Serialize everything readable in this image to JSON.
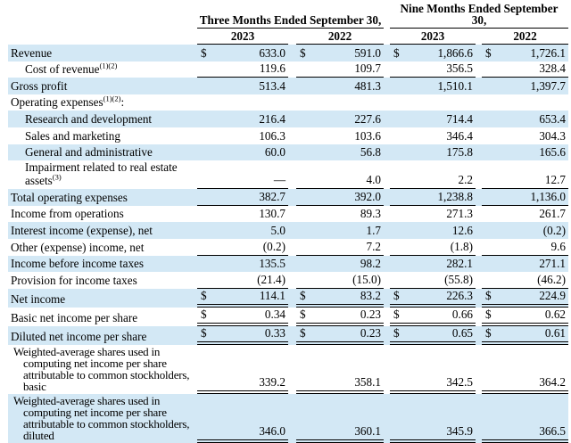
{
  "style": {
    "highlight_color": "#D3E8F5",
    "rule_color": "#000000"
  },
  "header": {
    "groups": [
      {
        "label": "Three Months Ended September 30,"
      },
      {
        "label": "Nine Months Ended September 30,"
      }
    ],
    "years": [
      "2023",
      "2022",
      "2023",
      "2022"
    ]
  },
  "rows": [
    {
      "label": "Revenue",
      "sup": "",
      "suffix": "",
      "indent": 0,
      "dollar": true,
      "values": [
        "633.0",
        "591.0",
        "1,866.6",
        "1,726.1"
      ],
      "highlight": true,
      "bottom": "none",
      "lines": 1
    },
    {
      "label": "Cost of revenue",
      "sup": "(1)(2)",
      "suffix": "",
      "indent": 1,
      "dollar": false,
      "values": [
        "119.6",
        "109.7",
        "356.5",
        "328.4"
      ],
      "highlight": false,
      "bottom": "single",
      "lines": 1
    },
    {
      "label": "Gross profit",
      "sup": "",
      "suffix": "",
      "indent": 0,
      "dollar": false,
      "values": [
        "513.4",
        "481.3",
        "1,510.1",
        "1,397.7"
      ],
      "highlight": true,
      "bottom": "none",
      "lines": 1
    },
    {
      "label": "Operating expenses",
      "sup": "(1)(2)",
      "suffix": ":",
      "indent": 0,
      "dollar": false,
      "values": null,
      "highlight": false,
      "bottom": "none",
      "lines": 1
    },
    {
      "label": "Research and development",
      "sup": "",
      "suffix": "",
      "indent": 1,
      "dollar": false,
      "values": [
        "216.4",
        "227.6",
        "714.4",
        "653.4"
      ],
      "highlight": true,
      "bottom": "none",
      "lines": 1
    },
    {
      "label": "Sales and marketing",
      "sup": "",
      "suffix": "",
      "indent": 1,
      "dollar": false,
      "values": [
        "106.3",
        "103.6",
        "346.4",
        "304.3"
      ],
      "highlight": false,
      "bottom": "none",
      "lines": 1
    },
    {
      "label": "General and administrative",
      "sup": "",
      "suffix": "",
      "indent": 1,
      "dollar": false,
      "values": [
        "60.0",
        "56.8",
        "175.8",
        "165.6"
      ],
      "highlight": true,
      "bottom": "none",
      "lines": 1
    },
    {
      "label": "Impairment related to real estate assets",
      "sup": "(3)",
      "suffix": "",
      "indent": 1,
      "dollar": false,
      "values": [
        "—",
        "4.0",
        "2.2",
        "12.7"
      ],
      "highlight": false,
      "bottom": "single",
      "lines": 2
    },
    {
      "label": "Total operating expenses",
      "sup": "",
      "suffix": "",
      "indent": 0,
      "dollar": false,
      "values": [
        "382.7",
        "392.0",
        "1,238.8",
        "1,136.0"
      ],
      "highlight": true,
      "bottom": "single",
      "lines": 1
    },
    {
      "label": "Income from operations",
      "sup": "",
      "suffix": "",
      "indent": 0,
      "dollar": false,
      "values": [
        "130.7",
        "89.3",
        "271.3",
        "261.7"
      ],
      "highlight": false,
      "bottom": "none",
      "lines": 1
    },
    {
      "label": "Interest income (expense), net",
      "sup": "",
      "suffix": "",
      "indent": 0,
      "dollar": false,
      "values": [
        "5.0",
        "1.7",
        "12.6",
        "(0.2)"
      ],
      "highlight": true,
      "bottom": "none",
      "lines": 1
    },
    {
      "label": "Other (expense) income, net",
      "sup": "",
      "suffix": "",
      "indent": 0,
      "dollar": false,
      "values": [
        "(0.2)",
        "7.2",
        "(1.8)",
        "9.6"
      ],
      "highlight": false,
      "bottom": "single",
      "lines": 1
    },
    {
      "label": "Income before income taxes",
      "sup": "",
      "suffix": "",
      "indent": 0,
      "dollar": false,
      "values": [
        "135.5",
        "98.2",
        "282.1",
        "271.1"
      ],
      "highlight": true,
      "bottom": "none",
      "lines": 1
    },
    {
      "label": "Provision for income taxes",
      "sup": "",
      "suffix": "",
      "indent": 0,
      "dollar": false,
      "values": [
        "(21.4)",
        "(15.0)",
        "(55.8)",
        "(46.2)"
      ],
      "highlight": false,
      "bottom": "single",
      "lines": 1
    },
    {
      "label": "Net income",
      "sup": "",
      "suffix": "",
      "indent": 0,
      "dollar": true,
      "values": [
        "114.1",
        "83.2",
        "226.3",
        "224.9"
      ],
      "highlight": true,
      "bottom": "double",
      "lines": 1
    },
    {
      "label": "Basic net income per share",
      "sup": "",
      "suffix": "",
      "indent": 0,
      "dollar": true,
      "values": [
        "0.34",
        "0.23",
        "0.66",
        "0.62"
      ],
      "highlight": false,
      "bottom": "double",
      "lines": 1
    },
    {
      "label": "Diluted net income per share",
      "sup": "",
      "suffix": "",
      "indent": 0,
      "dollar": true,
      "values": [
        "0.33",
        "0.23",
        "0.65",
        "0.61"
      ],
      "highlight": true,
      "bottom": "double",
      "lines": 1
    },
    {
      "label": "Weighted-average shares used in computing net income per share attributable to common stockholders, basic",
      "sup": "",
      "suffix": "",
      "indent": 0,
      "dollar": false,
      "values": [
        "339.2",
        "358.1",
        "342.5",
        "364.2"
      ],
      "highlight": false,
      "bottom": "double",
      "lines": 4
    },
    {
      "label": "Weighted-average shares used in computing net income per share attributable to common stockholders, diluted",
      "sup": "",
      "suffix": "",
      "indent": 0,
      "dollar": false,
      "values": [
        "346.0",
        "360.1",
        "345.9",
        "366.5"
      ],
      "highlight": true,
      "bottom": "double",
      "lines": 4
    }
  ]
}
